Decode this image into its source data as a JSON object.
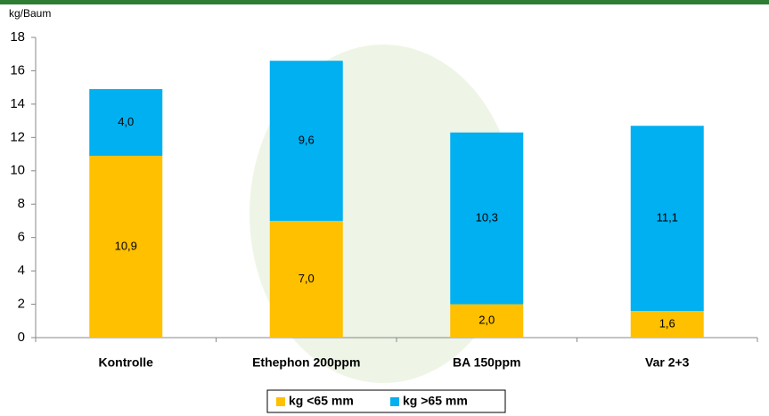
{
  "chart_data": {
    "type": "stacked-bar",
    "y_label": "kg/Baum",
    "categories": [
      "Kontrolle",
      "Ethephon 200ppm",
      "BA 150ppm",
      "Var 2+3"
    ],
    "series": [
      {
        "name": "kg <65 mm",
        "color": "#ffc000",
        "values": [
          10.9,
          7.0,
          2.0,
          1.6
        ],
        "value_labels": [
          "10,9",
          "7,0",
          "2,0",
          "1,6"
        ]
      },
      {
        "name": "kg >65 mm",
        "color": "#00b0f0",
        "values": [
          4.0,
          9.6,
          10.3,
          11.1
        ],
        "value_labels": [
          "4,0",
          "9,6",
          "10,3",
          "11,1"
        ]
      }
    ],
    "ylim": [
      0,
      18
    ],
    "yticks": [
      0,
      2,
      4,
      6,
      8,
      10,
      12,
      14,
      16,
      18
    ],
    "grid": false,
    "legend": "bottom"
  }
}
